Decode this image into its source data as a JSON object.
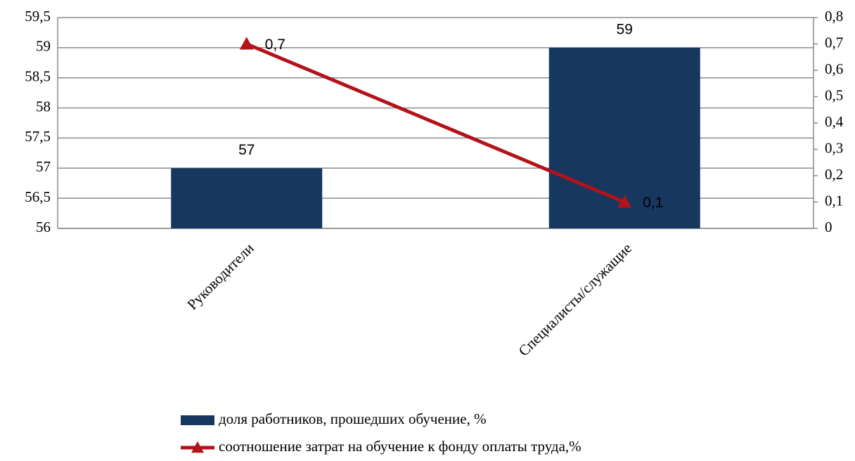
{
  "chart_data": {
    "type": "bar",
    "categories": [
      "Руководители",
      "Специалисты/служащие"
    ],
    "series": [
      {
        "name": "доля работников, прошедших обучение, %",
        "type": "bar",
        "axis": "y",
        "color": "#17375e",
        "values": [
          57,
          59
        ]
      },
      {
        "name": "соотношение затрат на обучение к фонду оплаты труда,%",
        "type": "line",
        "axis": "y2",
        "color": "#b3121b",
        "values": [
          0.7,
          0.1
        ],
        "value_labels": [
          "0,7",
          "0,1"
        ]
      }
    ],
    "ylim": [
      56,
      59.5
    ],
    "yticks": [
      56,
      {
        "value": 56.5,
        "label": "56,5"
      },
      57,
      {
        "value": 57.5,
        "label": "57,5"
      },
      58,
      {
        "value": 58.5,
        "label": "58,5"
      },
      59,
      {
        "value": 59.5,
        "label": "59,5"
      }
    ],
    "y2lim": [
      0,
      0.8
    ],
    "y2ticks": [
      0,
      {
        "value": 0.1,
        "label": "0,1"
      },
      {
        "value": 0.2,
        "label": "0,2"
      },
      {
        "value": 0.3,
        "label": "0,3"
      },
      {
        "value": 0.4,
        "label": "0,4"
      },
      {
        "value": 0.5,
        "label": "0,5"
      },
      {
        "value": 0.6,
        "label": "0,6"
      },
      {
        "value": 0.7,
        "label": "0,7"
      },
      {
        "value": 0.8,
        "label": "0,8"
      }
    ],
    "grid": true,
    "legend": "bottom"
  }
}
